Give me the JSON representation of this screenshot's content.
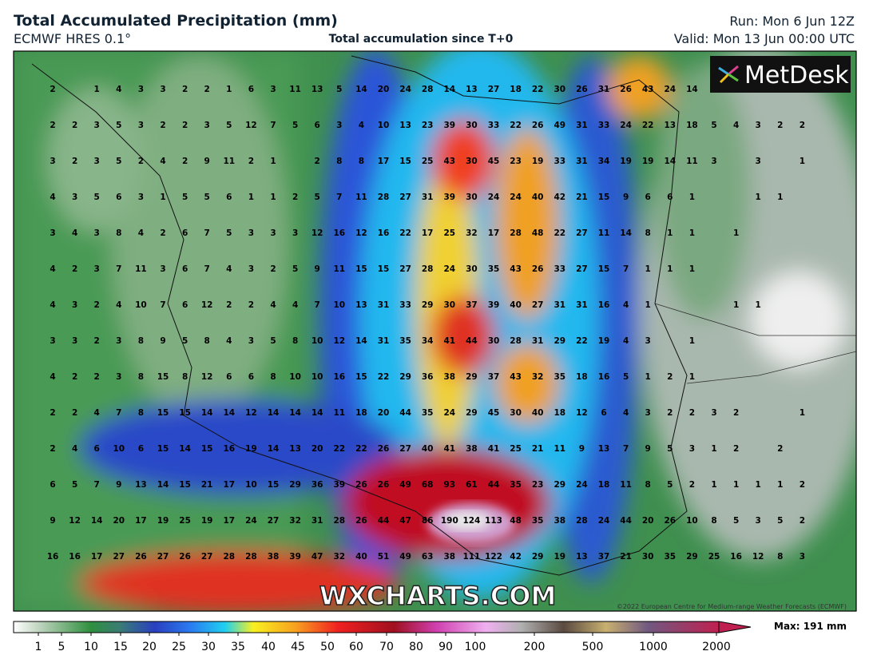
{
  "header": {
    "title": "Total Accumulated Precipitation (mm)",
    "model": "ECMWF HRES 0.1°",
    "subtitle": "Total accumulation since T+0",
    "run": "Run: Mon 6 Jun 12Z",
    "valid": "Valid: Mon 13 Jun 00:00 UTC"
  },
  "map": {
    "logo": "MetDesk",
    "watermark": "WXCHARTS.COM",
    "copyright": "©2022 European Centre for Medium-range Weather Forecasts (ECMWF)",
    "grid_values": [
      [
        2,
        null,
        1,
        4,
        3,
        3,
        2,
        2,
        1,
        6,
        3,
        11,
        13,
        5,
        14,
        20,
        24,
        28,
        14,
        13,
        27,
        18,
        22,
        30,
        26,
        31,
        26,
        43,
        24,
        14,
        null,
        null,
        null,
        null,
        null
      ],
      [
        2,
        2,
        3,
        5,
        3,
        2,
        2,
        3,
        5,
        12,
        7,
        5,
        6,
        3,
        4,
        10,
        13,
        23,
        39,
        30,
        33,
        22,
        26,
        49,
        31,
        33,
        24,
        22,
        13,
        18,
        5,
        4,
        3,
        2,
        2
      ],
      [
        3,
        2,
        3,
        5,
        2,
        4,
        2,
        9,
        11,
        2,
        1,
        null,
        2,
        8,
        8,
        17,
        15,
        25,
        43,
        30,
        45,
        23,
        19,
        33,
        31,
        34,
        19,
        19,
        14,
        11,
        3,
        null,
        3,
        null,
        1
      ],
      [
        4,
        3,
        5,
        6,
        3,
        1,
        5,
        5,
        6,
        1,
        1,
        2,
        5,
        7,
        11,
        28,
        27,
        31,
        39,
        30,
        24,
        24,
        40,
        42,
        21,
        15,
        9,
        6,
        6,
        1,
        null,
        null,
        1,
        1,
        null
      ],
      [
        3,
        4,
        3,
        8,
        4,
        2,
        6,
        7,
        5,
        3,
        3,
        3,
        12,
        16,
        12,
        16,
        22,
        17,
        25,
        32,
        17,
        28,
        48,
        22,
        27,
        11,
        14,
        8,
        1,
        1,
        null,
        1,
        null,
        null,
        null
      ],
      [
        4,
        2,
        3,
        7,
        11,
        3,
        6,
        7,
        4,
        3,
        2,
        5,
        9,
        11,
        15,
        15,
        27,
        28,
        24,
        30,
        35,
        43,
        26,
        33,
        27,
        15,
        7,
        1,
        1,
        1,
        null,
        null,
        null,
        null,
        null
      ],
      [
        4,
        3,
        2,
        4,
        10,
        7,
        6,
        12,
        2,
        2,
        4,
        4,
        7,
        10,
        13,
        31,
        33,
        29,
        30,
        37,
        39,
        40,
        27,
        31,
        31,
        16,
        4,
        1,
        null,
        null,
        null,
        1,
        1,
        null,
        null
      ],
      [
        3,
        3,
        2,
        3,
        8,
        9,
        5,
        8,
        4,
        3,
        5,
        8,
        10,
        12,
        14,
        31,
        35,
        34,
        41,
        44,
        30,
        28,
        31,
        29,
        22,
        19,
        4,
        3,
        null,
        1,
        null,
        null,
        null,
        null,
        null
      ],
      [
        4,
        2,
        2,
        3,
        8,
        15,
        8,
        12,
        6,
        6,
        8,
        10,
        10,
        16,
        15,
        22,
        29,
        36,
        38,
        29,
        37,
        43,
        32,
        35,
        18,
        16,
        5,
        1,
        2,
        1,
        null,
        null,
        null,
        null,
        null
      ],
      [
        2,
        2,
        4,
        7,
        8,
        15,
        15,
        14,
        14,
        12,
        14,
        14,
        14,
        11,
        18,
        20,
        44,
        35,
        24,
        29,
        45,
        30,
        40,
        18,
        12,
        6,
        4,
        3,
        2,
        2,
        3,
        2,
        null,
        null,
        1
      ],
      [
        2,
        4,
        6,
        10,
        6,
        15,
        14,
        15,
        16,
        19,
        14,
        13,
        20,
        22,
        22,
        26,
        27,
        40,
        41,
        38,
        41,
        25,
        21,
        11,
        9,
        13,
        7,
        9,
        5,
        3,
        1,
        2,
        null,
        2,
        null
      ],
      [
        6,
        5,
        7,
        9,
        13,
        14,
        15,
        21,
        17,
        10,
        15,
        29,
        36,
        39,
        26,
        26,
        49,
        68,
        93,
        61,
        44,
        35,
        23,
        29,
        24,
        18,
        11,
        8,
        5,
        2,
        1,
        1,
        1,
        1,
        2
      ],
      [
        9,
        12,
        14,
        20,
        17,
        19,
        25,
        19,
        17,
        24,
        27,
        32,
        31,
        28,
        26,
        44,
        47,
        86,
        190,
        124,
        113,
        48,
        35,
        38,
        28,
        24,
        44,
        20,
        26,
        10,
        8,
        5,
        3,
        5,
        2
      ],
      [
        16,
        16,
        17,
        27,
        26,
        27,
        26,
        27,
        28,
        28,
        38,
        39,
        47,
        32,
        40,
        51,
        49,
        63,
        38,
        111,
        122,
        42,
        29,
        19,
        13,
        37,
        21,
        30,
        35,
        29,
        25,
        16,
        12,
        8,
        3
      ]
    ]
  },
  "legend": {
    "ticks": [
      1,
      5,
      10,
      15,
      20,
      25,
      30,
      35,
      40,
      45,
      50,
      60,
      70,
      80,
      90,
      100,
      200,
      500,
      1000,
      2000
    ],
    "max_label": "Max: 191 mm"
  }
}
